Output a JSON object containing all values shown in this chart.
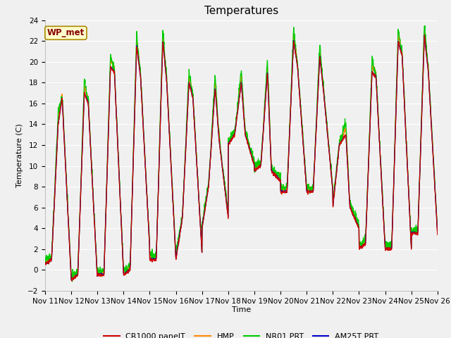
{
  "title": "Temperatures",
  "ylabel": "Temperature (C)",
  "xlabel": "Time",
  "ylim": [
    -2,
    24
  ],
  "fig_color": "#f0f0f0",
  "plot_bg_color": "#f0f0f0",
  "series_colors": {
    "CR1000 panelT": "#cc0000",
    "HMP": "#ff8800",
    "NR01 PRT": "#00cc00",
    "AM25T PRT": "#0000cc"
  },
  "wp_met_label": "WP_met",
  "wp_met_color": "#880000",
  "wp_met_bg": "#ffffcc",
  "wp_met_edge": "#aa8800",
  "yticks": [
    -2,
    0,
    2,
    4,
    6,
    8,
    10,
    12,
    14,
    16,
    18,
    20,
    22,
    24
  ],
  "xtick_labels": [
    "Nov 11",
    "Nov 12",
    "Nov 13",
    "Nov 14",
    "Nov 15",
    "Nov 16",
    "Nov 17",
    "Nov 18",
    "Nov 19",
    "Nov 20",
    "Nov 21",
    "Nov 22",
    "Nov 23",
    "Nov 24",
    "Nov 25",
    "Nov 26"
  ],
  "title_fontsize": 11,
  "axis_fontsize": 8,
  "tick_fontsize": 7.5,
  "legend_fontsize": 8,
  "day_patterns": [
    [
      0.5,
      1.0,
      14.0,
      16.5,
      -1.0
    ],
    [
      -1.0,
      -0.5,
      17.0,
      16.0,
      -1.0
    ],
    [
      -0.5,
      -0.5,
      19.5,
      19.0,
      -0.5
    ],
    [
      -0.5,
      0.0,
      21.5,
      18.5,
      2.0
    ],
    [
      1.0,
      1.0,
      22.0,
      18.0,
      1.0
    ],
    [
      1.0,
      5.0,
      18.0,
      16.5,
      1.5
    ],
    [
      4.0,
      8.0,
      17.5,
      12.5,
      5.0
    ],
    [
      12.0,
      13.0,
      18.0,
      13.0,
      10.0
    ],
    [
      9.5,
      10.0,
      19.0,
      9.5,
      8.5
    ],
    [
      7.5,
      7.5,
      22.0,
      19.5,
      7.5
    ],
    [
      7.5,
      7.5,
      20.5,
      17.0,
      7.5
    ],
    [
      6.0,
      12.0,
      13.0,
      6.0,
      4.0
    ],
    [
      2.0,
      2.5,
      19.0,
      18.5,
      2.0
    ],
    [
      2.0,
      2.0,
      22.0,
      20.5,
      2.0
    ],
    [
      3.5,
      3.5,
      22.5,
      19.0,
      3.5
    ]
  ]
}
